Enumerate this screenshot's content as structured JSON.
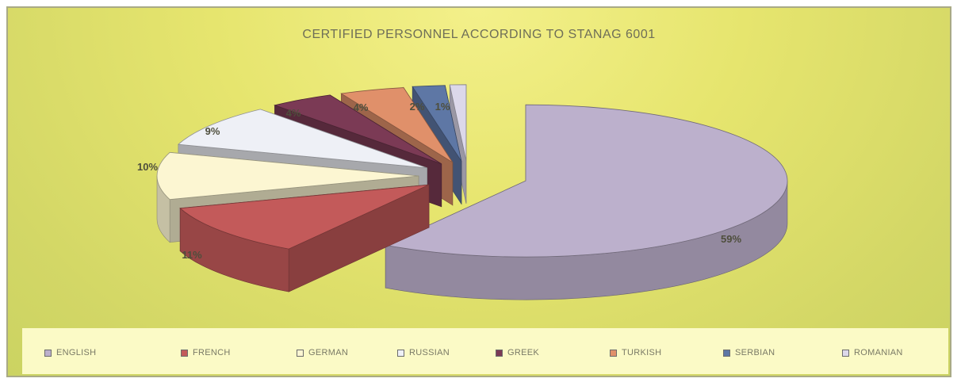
{
  "chart_data": {
    "type": "pie",
    "title": "CERTIFIED PERSONNEL ACCORDING TO STANAG 6001",
    "legend_position": "bottom",
    "three_d": true,
    "slices": [
      {
        "name": "ENGLISH",
        "value": 59,
        "label": "59%",
        "color": "#bcb0cc"
      },
      {
        "name": "FRENCH",
        "value": 11,
        "label": "11%",
        "color": "#c35a5a"
      },
      {
        "name": "GERMAN",
        "value": 10,
        "label": "10%",
        "color": "#fcf6d2"
      },
      {
        "name": "RUSSIAN",
        "value": 9,
        "label": "9%",
        "color": "#eef0f6"
      },
      {
        "name": "GREEK",
        "value": 4,
        "label": "4%",
        "color": "#7b3a55"
      },
      {
        "name": "TURKISH",
        "value": 4,
        "label": "4%",
        "color": "#e0906a"
      },
      {
        "name": "SERBIAN",
        "value": 2,
        "label": "2%",
        "color": "#5e77a5"
      },
      {
        "name": "ROMANIAN",
        "value": 1,
        "label": "1%",
        "color": "#dcd8ea"
      }
    ]
  }
}
